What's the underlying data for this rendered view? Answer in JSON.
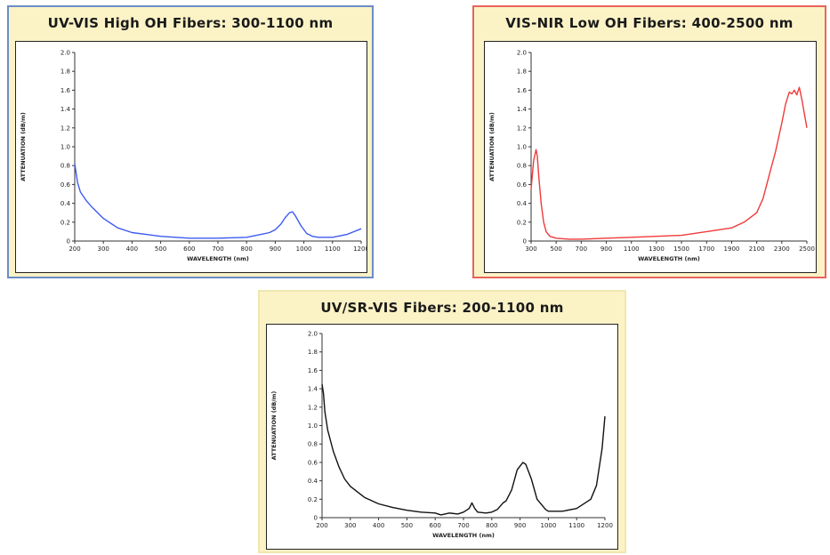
{
  "chart_data": [
    {
      "type": "line",
      "title": "UV-VIS High OH Fibers: 300-1100 nm",
      "xlabel": "WAVELENGTH (nm)",
      "ylabel": "ATTENUATION (dB/m)",
      "xlim": [
        200,
        1200
      ],
      "ylim": [
        0,
        2.0
      ],
      "xticks": [
        "200",
        "300",
        "400",
        "500",
        "600",
        "700",
        "800",
        "900",
        "1000",
        "1100",
        "1200"
      ],
      "yticks": [
        "0",
        "0.2",
        "0.4",
        "0.6",
        "0.8",
        "1.0",
        "1.2",
        "1.4",
        "1.6",
        "1.8",
        "2.0"
      ],
      "line_color": "#3d5bf0",
      "border_color": "#6b8cc7",
      "series": [
        {
          "x": [
            200,
            205,
            210,
            220,
            240,
            260,
            300,
            350,
            400,
            450,
            500,
            600,
            700,
            800,
            850,
            880,
            900,
            920,
            935,
            950,
            960,
            970,
            990,
            1010,
            1030,
            1050,
            1100,
            1150,
            1200
          ],
          "y": [
            0.82,
            0.72,
            0.62,
            0.52,
            0.43,
            0.36,
            0.24,
            0.14,
            0.09,
            0.07,
            0.05,
            0.03,
            0.03,
            0.04,
            0.07,
            0.09,
            0.12,
            0.18,
            0.25,
            0.3,
            0.31,
            0.27,
            0.16,
            0.08,
            0.05,
            0.04,
            0.04,
            0.07,
            0.13
          ]
        }
      ]
    },
    {
      "type": "line",
      "title": "VIS-NIR Low OH Fibers: 400-2500 nm",
      "xlabel": "WAVELENGTH (nm)",
      "ylabel": "ATTENUATION (dB/m)",
      "xlim": [
        300,
        2500
      ],
      "ylim": [
        0,
        2.0
      ],
      "xticks": [
        "300",
        "500",
        "700",
        "900",
        "1100",
        "1300",
        "1500",
        "1700",
        "1900",
        "2100",
        "2300",
        "2500"
      ],
      "yticks": [
        "0",
        "0.2",
        "0.4",
        "0.6",
        "0.8",
        "1.0",
        "1.2",
        "1.4",
        "1.6",
        "1.8",
        "2.0"
      ],
      "line_color": "#f03a3a",
      "border_color": "#e8645c",
      "series": [
        {
          "x": [
            300,
            320,
            340,
            350,
            360,
            380,
            400,
            420,
            450,
            500,
            600,
            700,
            900,
            1100,
            1300,
            1500,
            1700,
            1900,
            2000,
            2100,
            2150,
            2200,
            2250,
            2300,
            2330,
            2360,
            2380,
            2400,
            2420,
            2440,
            2460,
            2480,
            2500
          ],
          "y": [
            0.55,
            0.85,
            0.97,
            0.9,
            0.7,
            0.4,
            0.2,
            0.1,
            0.05,
            0.03,
            0.02,
            0.02,
            0.03,
            0.04,
            0.05,
            0.06,
            0.1,
            0.14,
            0.2,
            0.3,
            0.45,
            0.7,
            0.95,
            1.25,
            1.45,
            1.58,
            1.56,
            1.6,
            1.55,
            1.63,
            1.5,
            1.35,
            1.2
          ]
        }
      ]
    },
    {
      "type": "line",
      "title": "UV/SR-VIS Fibers: 200-1100 nm",
      "xlabel": "WAVELENGTH (nm)",
      "ylabel": "ATTENUATION (dB/m)",
      "xlim": [
        200,
        1200
      ],
      "ylim": [
        0,
        2.0
      ],
      "xticks": [
        "200",
        "300",
        "400",
        "500",
        "600",
        "700",
        "800",
        "900",
        "1000",
        "1100",
        "1200"
      ],
      "yticks": [
        "0",
        "0.2",
        "0.4",
        "0.6",
        "0.8",
        "1.0",
        "1.2",
        "1.4",
        "1.6",
        "1.8",
        "2.0"
      ],
      "line_color": "#111111",
      "border_color": "#f0e6b0",
      "series": [
        {
          "x": [
            200,
            205,
            210,
            220,
            240,
            260,
            280,
            300,
            350,
            400,
            450,
            500,
            550,
            600,
            620,
            650,
            680,
            700,
            720,
            730,
            740,
            750,
            780,
            800,
            820,
            840,
            850,
            870,
            890,
            910,
            920,
            940,
            960,
            990,
            1000,
            1050,
            1100,
            1150,
            1170,
            1190,
            1200
          ],
          "y": [
            1.45,
            1.35,
            1.15,
            0.95,
            0.72,
            0.55,
            0.42,
            0.34,
            0.22,
            0.15,
            0.11,
            0.08,
            0.06,
            0.05,
            0.03,
            0.05,
            0.04,
            0.06,
            0.1,
            0.16,
            0.1,
            0.06,
            0.05,
            0.06,
            0.09,
            0.16,
            0.18,
            0.3,
            0.52,
            0.6,
            0.58,
            0.42,
            0.2,
            0.09,
            0.07,
            0.07,
            0.1,
            0.2,
            0.35,
            0.75,
            1.1
          ]
        }
      ]
    }
  ]
}
